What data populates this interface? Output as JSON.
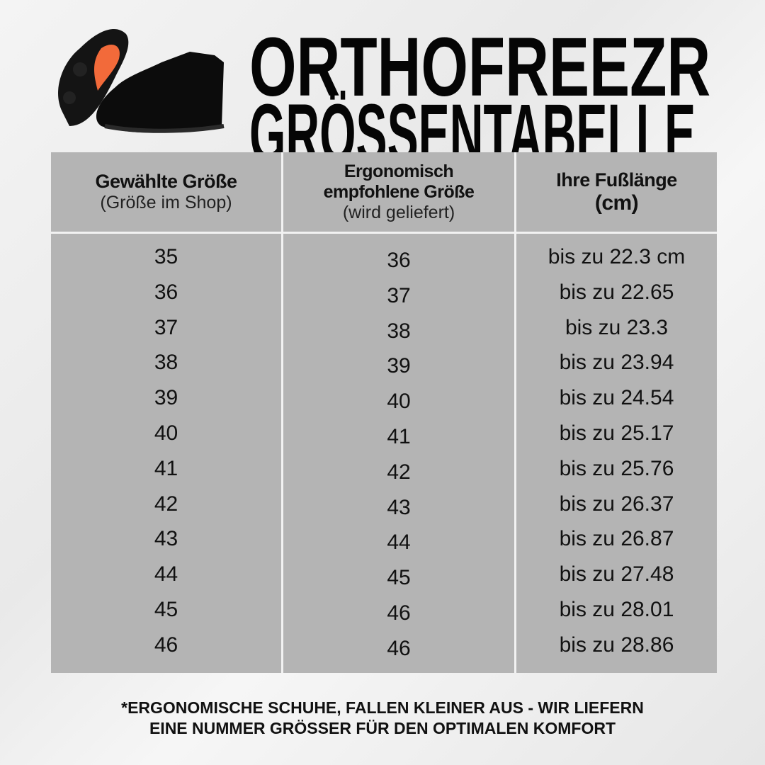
{
  "title": {
    "line1": "ORTHOFREEZR",
    "line2": "GRÖSSENTABELLE"
  },
  "colors": {
    "table_bg": "#b4b4b4",
    "sole_accent": "#f26a3a"
  },
  "table": {
    "headers": [
      {
        "bold": [
          "Gewählte Größe"
        ],
        "normal": "(Größe im Shop)"
      },
      {
        "bold": [
          "Ergonomisch",
          "empfohlene Größe"
        ],
        "normal": "(wird geliefert)"
      },
      {
        "bold": [
          "Ihre Fußlänge",
          "(cm)"
        ],
        "normal": ""
      }
    ],
    "selected": [
      "35",
      "36",
      "37",
      "38",
      "39",
      "40",
      "41",
      "42",
      "43",
      "44",
      "45",
      "46"
    ],
    "recommended": [
      "36",
      "37",
      "38",
      "39",
      "40",
      "41",
      "42",
      "43",
      "44",
      "45",
      "46",
      "46"
    ],
    "foot_length": [
      "bis zu 22.3 cm",
      "bis zu 22.65",
      "bis zu 23.3",
      "bis zu 23.94",
      "bis zu 24.54",
      "bis zu 25.17",
      "bis zu 25.76",
      "bis zu 26.37",
      "bis zu 26.87",
      "bis zu 27.48",
      "bis zu 28.01",
      "bis zu 28.86"
    ]
  },
  "note": {
    "line1": "*ERGONOMISCHE SCHUHE, FALLEN KLEINER AUS - WIR LIEFERN",
    "line2": "EINE NUMMER GRÖSSER FÜR DEN OPTIMALEN KOMFORT"
  }
}
